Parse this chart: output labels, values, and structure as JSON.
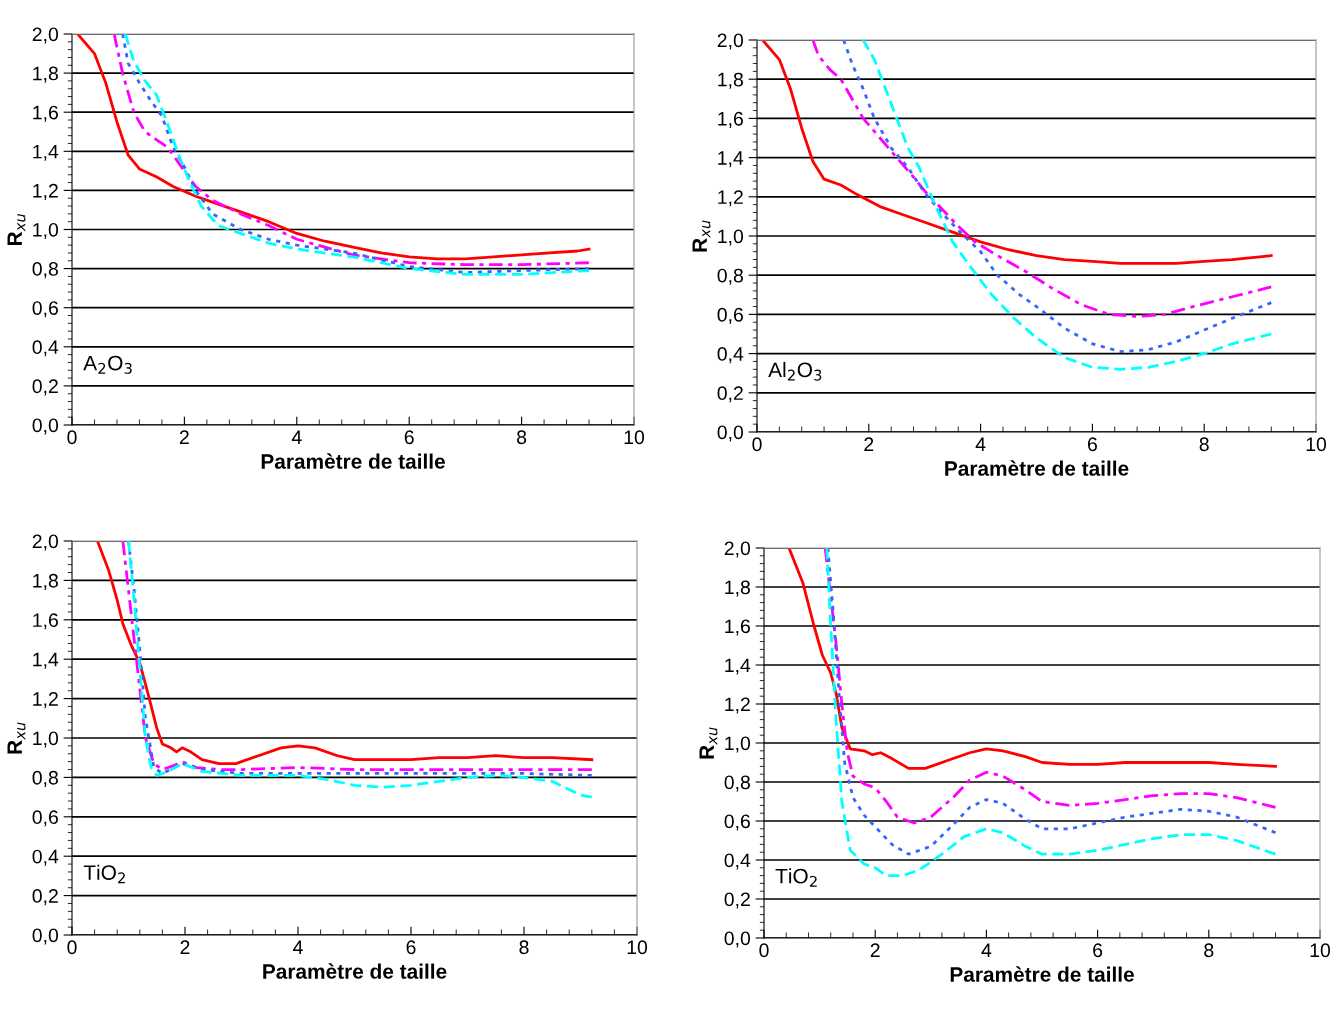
{
  "chart_data": [
    {
      "type": "line",
      "xlabel": "Paramètre de taille",
      "ylabel": "R$_{xu}$",
      "annotations": [
        "A$_{2}$O$_{3}$"
      ],
      "xlim": [
        0,
        10
      ],
      "ylim": [
        0,
        2
      ],
      "xticks": [
        0,
        2,
        4,
        6,
        8,
        10
      ],
      "yticks": [
        {
          "value": 0,
          "label": "0,0"
        },
        {
          "value": 0.2,
          "label": "0,2"
        },
        {
          "value": 0.4,
          "label": "0,4"
        },
        {
          "value": 0.6,
          "label": "0,6"
        },
        {
          "value": 0.8,
          "label": "0,8"
        },
        {
          "value": 1.0,
          "label": "1,0"
        },
        {
          "value": 1.2,
          "label": "1,2"
        },
        {
          "value": 1.4,
          "label": "1,4"
        },
        {
          "value": 1.6,
          "label": "1,6"
        },
        {
          "value": 1.8,
          "label": "1,8"
        },
        {
          "value": 2.0,
          "label": "2,0"
        }
      ],
      "grid": "y",
      "series": [
        {
          "color": "#ff0000",
          "line_style": "solid",
          "x": [
            0.1,
            0.4,
            0.6,
            0.8,
            1.0,
            1.2,
            1.5,
            1.8,
            2.2,
            2.6,
            3.0,
            3.5,
            4.0,
            4.5,
            5.0,
            5.5,
            6.0,
            6.5,
            7.0,
            7.5,
            8.0,
            8.5,
            9.0,
            9.2
          ],
          "values": [
            2.0,
            1.9,
            1.75,
            1.55,
            1.38,
            1.31,
            1.27,
            1.22,
            1.17,
            1.13,
            1.09,
            1.04,
            0.98,
            0.94,
            0.91,
            0.88,
            0.86,
            0.85,
            0.85,
            0.86,
            0.87,
            0.88,
            0.89,
            0.9
          ]
        },
        {
          "color": "#ff00ff",
          "line_style": "dashdot",
          "x": [
            0.75,
            0.9,
            1.1,
            1.3,
            1.5,
            1.7,
            2.0,
            2.2,
            2.5,
            3.0,
            3.5,
            4.0,
            4.5,
            5.0,
            5.5,
            6.0,
            7.0,
            8.0,
            9.2
          ],
          "values": [
            2.0,
            1.8,
            1.6,
            1.5,
            1.46,
            1.42,
            1.3,
            1.22,
            1.15,
            1.08,
            1.02,
            0.95,
            0.91,
            0.87,
            0.85,
            0.83,
            0.82,
            0.82,
            0.83
          ]
        },
        {
          "color": "#3366ff",
          "line_style": "dotted",
          "x": [
            0.9,
            1.0,
            1.2,
            1.4,
            1.6,
            1.8,
            2.0,
            2.2,
            2.5,
            3.0,
            3.5,
            4.0,
            5.0,
            6.0,
            7.0,
            8.0,
            9.2
          ],
          "values": [
            2.0,
            1.85,
            1.75,
            1.66,
            1.58,
            1.42,
            1.32,
            1.2,
            1.08,
            1.0,
            0.95,
            0.92,
            0.88,
            0.81,
            0.78,
            0.79,
            0.8
          ]
        },
        {
          "color": "#00ffff",
          "line_style": "dashed",
          "x": [
            0.95,
            1.1,
            1.3,
            1.5,
            1.7,
            1.9,
            2.1,
            2.3,
            2.6,
            3.0,
            3.5,
            4.0,
            5.0,
            6.0,
            7.0,
            8.0,
            9.2
          ],
          "values": [
            2.0,
            1.86,
            1.76,
            1.69,
            1.54,
            1.38,
            1.24,
            1.12,
            1.02,
            0.98,
            0.93,
            0.9,
            0.86,
            0.8,
            0.77,
            0.77,
            0.79
          ]
        }
      ]
    },
    {
      "type": "line",
      "xlabel": "Paramètre de taille",
      "ylabel": "R$_{xu}$",
      "annotations": [
        "Al$_{2}$O$_{3}$"
      ],
      "xlim": [
        0,
        10
      ],
      "ylim": [
        0,
        2
      ],
      "xticks": [
        0,
        2,
        4,
        6,
        8,
        10
      ],
      "yticks": [
        {
          "value": 0,
          "label": "0,0"
        },
        {
          "value": 0.2,
          "label": "0,2"
        },
        {
          "value": 0.4,
          "label": "0,4"
        },
        {
          "value": 0.6,
          "label": "0,6"
        },
        {
          "value": 0.8,
          "label": "0,8"
        },
        {
          "value": 1.0,
          "label": "1,0"
        },
        {
          "value": 1.2,
          "label": "1,2"
        },
        {
          "value": 1.4,
          "label": "1,4"
        },
        {
          "value": 1.6,
          "label": "1,6"
        },
        {
          "value": 1.8,
          "label": "1,8"
        },
        {
          "value": 2.0,
          "label": "2,0"
        }
      ],
      "grid": "y",
      "series": [
        {
          "color": "#ff0000",
          "line_style": "solid",
          "x": [
            0.1,
            0.4,
            0.6,
            0.8,
            1.0,
            1.2,
            1.5,
            1.8,
            2.2,
            2.6,
            3.0,
            3.5,
            4.0,
            4.5,
            5.0,
            5.5,
            6.0,
            6.5,
            7.0,
            7.5,
            8.0,
            8.5,
            9.2
          ],
          "values": [
            2.0,
            1.9,
            1.75,
            1.55,
            1.38,
            1.29,
            1.26,
            1.21,
            1.15,
            1.11,
            1.07,
            1.02,
            0.97,
            0.93,
            0.9,
            0.88,
            0.87,
            0.86,
            0.86,
            0.86,
            0.87,
            0.88,
            0.9
          ]
        },
        {
          "color": "#ff00ff",
          "line_style": "dashdot",
          "x": [
            1.0,
            1.1,
            1.3,
            1.5,
            1.7,
            1.9,
            2.2,
            2.5,
            2.8,
            3.0,
            3.3,
            3.6,
            3.9,
            4.3,
            4.8,
            5.3,
            5.8,
            6.3,
            6.8,
            7.3,
            7.8,
            8.5,
            9.2
          ],
          "values": [
            2.0,
            1.92,
            1.85,
            1.8,
            1.7,
            1.6,
            1.5,
            1.4,
            1.3,
            1.23,
            1.14,
            1.05,
            0.97,
            0.9,
            0.82,
            0.73,
            0.65,
            0.6,
            0.59,
            0.6,
            0.64,
            0.69,
            0.74
          ]
        },
        {
          "color": "#3366ff",
          "line_style": "dotted",
          "x": [
            1.55,
            1.7,
            1.9,
            2.1,
            2.4,
            2.7,
            3.0,
            3.3,
            3.6,
            4.0,
            4.3,
            4.7,
            5.0,
            5.5,
            6.0,
            6.5,
            7.0,
            7.5,
            8.0,
            8.5,
            9.2
          ],
          "values": [
            2.0,
            1.88,
            1.75,
            1.6,
            1.45,
            1.35,
            1.22,
            1.12,
            1.03,
            0.92,
            0.8,
            0.7,
            0.64,
            0.53,
            0.45,
            0.41,
            0.42,
            0.46,
            0.52,
            0.58,
            0.66
          ]
        },
        {
          "color": "#00ffff",
          "line_style": "dashed",
          "x": [
            1.9,
            2.1,
            2.3,
            2.5,
            2.7,
            2.9,
            3.2,
            3.5,
            3.8,
            4.2,
            4.6,
            5.0,
            5.5,
            6.0,
            6.5,
            7.0,
            7.5,
            8.0,
            8.5,
            9.2
          ],
          "values": [
            2.0,
            1.9,
            1.75,
            1.6,
            1.45,
            1.35,
            1.15,
            0.97,
            0.85,
            0.7,
            0.58,
            0.48,
            0.38,
            0.33,
            0.32,
            0.33,
            0.36,
            0.4,
            0.45,
            0.5
          ]
        }
      ]
    },
    {
      "type": "line",
      "xlabel": "Paramètre de taille",
      "ylabel": "R$_{xu}$",
      "annotations": [
        "TiO$_{2}$"
      ],
      "xlim": [
        0,
        10
      ],
      "ylim": [
        0,
        2
      ],
      "xticks": [
        0,
        2,
        4,
        6,
        8,
        10
      ],
      "yticks": [
        {
          "value": 0,
          "label": "0,0"
        },
        {
          "value": 0.2,
          "label": "0,2"
        },
        {
          "value": 0.4,
          "label": "0,4"
        },
        {
          "value": 0.6,
          "label": "0,6"
        },
        {
          "value": 0.8,
          "label": "0,8"
        },
        {
          "value": 1.0,
          "label": "1,0"
        },
        {
          "value": 1.2,
          "label": "1,2"
        },
        {
          "value": 1.4,
          "label": "1,4"
        },
        {
          "value": 1.6,
          "label": "1,6"
        },
        {
          "value": 1.8,
          "label": "1,8"
        },
        {
          "value": 2.0,
          "label": "2,0"
        }
      ],
      "grid": "y",
      "series": [
        {
          "color": "#ff0000",
          "line_style": "solid",
          "x": [
            0.45,
            0.65,
            0.8,
            0.9,
            1.05,
            1.2,
            1.35,
            1.5,
            1.6,
            1.75,
            1.85,
            1.95,
            2.1,
            2.3,
            2.6,
            2.9,
            3.3,
            3.7,
            4.0,
            4.3,
            4.7,
            5.0,
            5.5,
            6.0,
            6.5,
            7.0,
            7.5,
            8.0,
            8.5,
            9.2
          ],
          "values": [
            2.0,
            1.85,
            1.7,
            1.58,
            1.47,
            1.38,
            1.22,
            1.05,
            0.97,
            0.95,
            0.93,
            0.95,
            0.93,
            0.89,
            0.87,
            0.87,
            0.91,
            0.95,
            0.96,
            0.95,
            0.91,
            0.89,
            0.89,
            0.89,
            0.9,
            0.9,
            0.91,
            0.9,
            0.9,
            0.89
          ]
        },
        {
          "color": "#ff00ff",
          "line_style": "dashdot",
          "x": [
            0.9,
            1.0,
            1.1,
            1.2,
            1.3,
            1.45,
            1.6,
            1.8,
            1.95,
            2.2,
            2.6,
            3.0,
            4.0,
            5.0,
            6.0,
            7.0,
            8.0,
            9.2
          ],
          "values": [
            2.0,
            1.75,
            1.5,
            1.25,
            1.0,
            0.87,
            0.84,
            0.86,
            0.88,
            0.85,
            0.84,
            0.84,
            0.85,
            0.84,
            0.84,
            0.84,
            0.84,
            0.84
          ]
        },
        {
          "color": "#3366ff",
          "line_style": "dotted",
          "x": [
            1.0,
            1.1,
            1.2,
            1.3,
            1.45,
            1.6,
            1.95,
            2.3,
            3.0,
            4.0,
            5.0,
            6.0,
            7.0,
            8.0,
            9.2
          ],
          "values": [
            2.0,
            1.75,
            1.45,
            1.1,
            0.85,
            0.82,
            0.87,
            0.84,
            0.82,
            0.82,
            0.82,
            0.82,
            0.82,
            0.82,
            0.81
          ]
        },
        {
          "color": "#00ffff",
          "line_style": "dashed",
          "x": [
            1.0,
            1.1,
            1.2,
            1.3,
            1.4,
            1.5,
            1.7,
            1.95,
            2.3,
            3.0,
            4.0,
            4.5,
            5.0,
            5.5,
            6.0,
            6.5,
            7.0,
            7.5,
            8.0,
            8.5,
            9.0,
            9.2
          ],
          "values": [
            2.0,
            1.7,
            1.35,
            1.0,
            0.85,
            0.81,
            0.83,
            0.87,
            0.83,
            0.81,
            0.81,
            0.79,
            0.76,
            0.75,
            0.76,
            0.78,
            0.8,
            0.81,
            0.8,
            0.78,
            0.71,
            0.7
          ]
        }
      ]
    },
    {
      "type": "line",
      "xlabel": "Paramètre de taille",
      "ylabel": "R$_{xu}$",
      "annotations": [
        "TiO$_{2}$"
      ],
      "xlim": [
        0,
        10
      ],
      "ylim": [
        0,
        2
      ],
      "xticks": [
        0,
        2,
        4,
        6,
        8,
        10
      ],
      "yticks": [
        {
          "value": 0,
          "label": "0,0"
        },
        {
          "value": 0.2,
          "label": "0,2"
        },
        {
          "value": 0.4,
          "label": "0,4"
        },
        {
          "value": 0.6,
          "label": "0,6"
        },
        {
          "value": 0.8,
          "label": "0,8"
        },
        {
          "value": 1.0,
          "label": "1,0"
        },
        {
          "value": 1.2,
          "label": "1,2"
        },
        {
          "value": 1.4,
          "label": "1,4"
        },
        {
          "value": 1.6,
          "label": "1,6"
        },
        {
          "value": 1.8,
          "label": "1,8"
        },
        {
          "value": 2.0,
          "label": "2,0"
        }
      ],
      "grid": "y",
      "series": [
        {
          "color": "#ff0000",
          "line_style": "solid",
          "x": [
            0.45,
            0.7,
            0.9,
            1.05,
            1.2,
            1.3,
            1.4,
            1.55,
            1.8,
            1.95,
            2.1,
            2.3,
            2.6,
            2.9,
            3.3,
            3.7,
            4.0,
            4.3,
            4.7,
            5.0,
            5.5,
            6.0,
            6.5,
            7.0,
            7.5,
            8.0,
            8.5,
            9.2
          ],
          "values": [
            2.0,
            1.82,
            1.6,
            1.45,
            1.36,
            1.25,
            1.08,
            0.97,
            0.96,
            0.94,
            0.95,
            0.92,
            0.87,
            0.87,
            0.91,
            0.95,
            0.97,
            0.96,
            0.93,
            0.9,
            0.89,
            0.89,
            0.9,
            0.9,
            0.9,
            0.9,
            0.89,
            0.88
          ]
        },
        {
          "color": "#ff00ff",
          "line_style": "dashdot",
          "x": [
            1.1,
            1.2,
            1.3,
            1.4,
            1.5,
            1.6,
            1.8,
            2.0,
            2.2,
            2.4,
            2.7,
            3.0,
            3.4,
            3.7,
            4.0,
            4.3,
            4.7,
            5.0,
            5.5,
            6.0,
            6.5,
            7.0,
            7.5,
            8.0,
            8.5,
            9.2
          ],
          "values": [
            2.0,
            1.75,
            1.5,
            1.2,
            0.95,
            0.83,
            0.79,
            0.77,
            0.7,
            0.62,
            0.59,
            0.62,
            0.72,
            0.81,
            0.85,
            0.83,
            0.76,
            0.7,
            0.68,
            0.69,
            0.71,
            0.73,
            0.74,
            0.74,
            0.72,
            0.67
          ]
        },
        {
          "color": "#3366ff",
          "line_style": "dotted",
          "x": [
            1.15,
            1.25,
            1.35,
            1.45,
            1.6,
            1.8,
            2.0,
            2.3,
            2.6,
            3.0,
            3.4,
            3.7,
            4.0,
            4.3,
            4.7,
            5.0,
            5.5,
            6.0,
            6.5,
            7.0,
            7.5,
            8.0,
            8.5,
            9.2
          ],
          "values": [
            2.0,
            1.65,
            1.25,
            0.9,
            0.72,
            0.63,
            0.57,
            0.48,
            0.43,
            0.47,
            0.58,
            0.67,
            0.71,
            0.69,
            0.61,
            0.56,
            0.56,
            0.59,
            0.62,
            0.64,
            0.66,
            0.65,
            0.62,
            0.54
          ]
        },
        {
          "color": "#00ffff",
          "line_style": "dashed",
          "x": [
            1.13,
            1.2,
            1.3,
            1.4,
            1.55,
            1.8,
            2.0,
            2.2,
            2.5,
            2.8,
            3.2,
            3.6,
            4.0,
            4.3,
            4.7,
            5.0,
            5.5,
            6.0,
            6.5,
            7.0,
            7.5,
            8.0,
            8.5,
            9.2
          ],
          "values": [
            2.0,
            1.6,
            1.1,
            0.7,
            0.45,
            0.38,
            0.36,
            0.32,
            0.32,
            0.35,
            0.43,
            0.52,
            0.56,
            0.54,
            0.47,
            0.43,
            0.43,
            0.45,
            0.48,
            0.51,
            0.53,
            0.53,
            0.5,
            0.43
          ]
        }
      ]
    }
  ]
}
